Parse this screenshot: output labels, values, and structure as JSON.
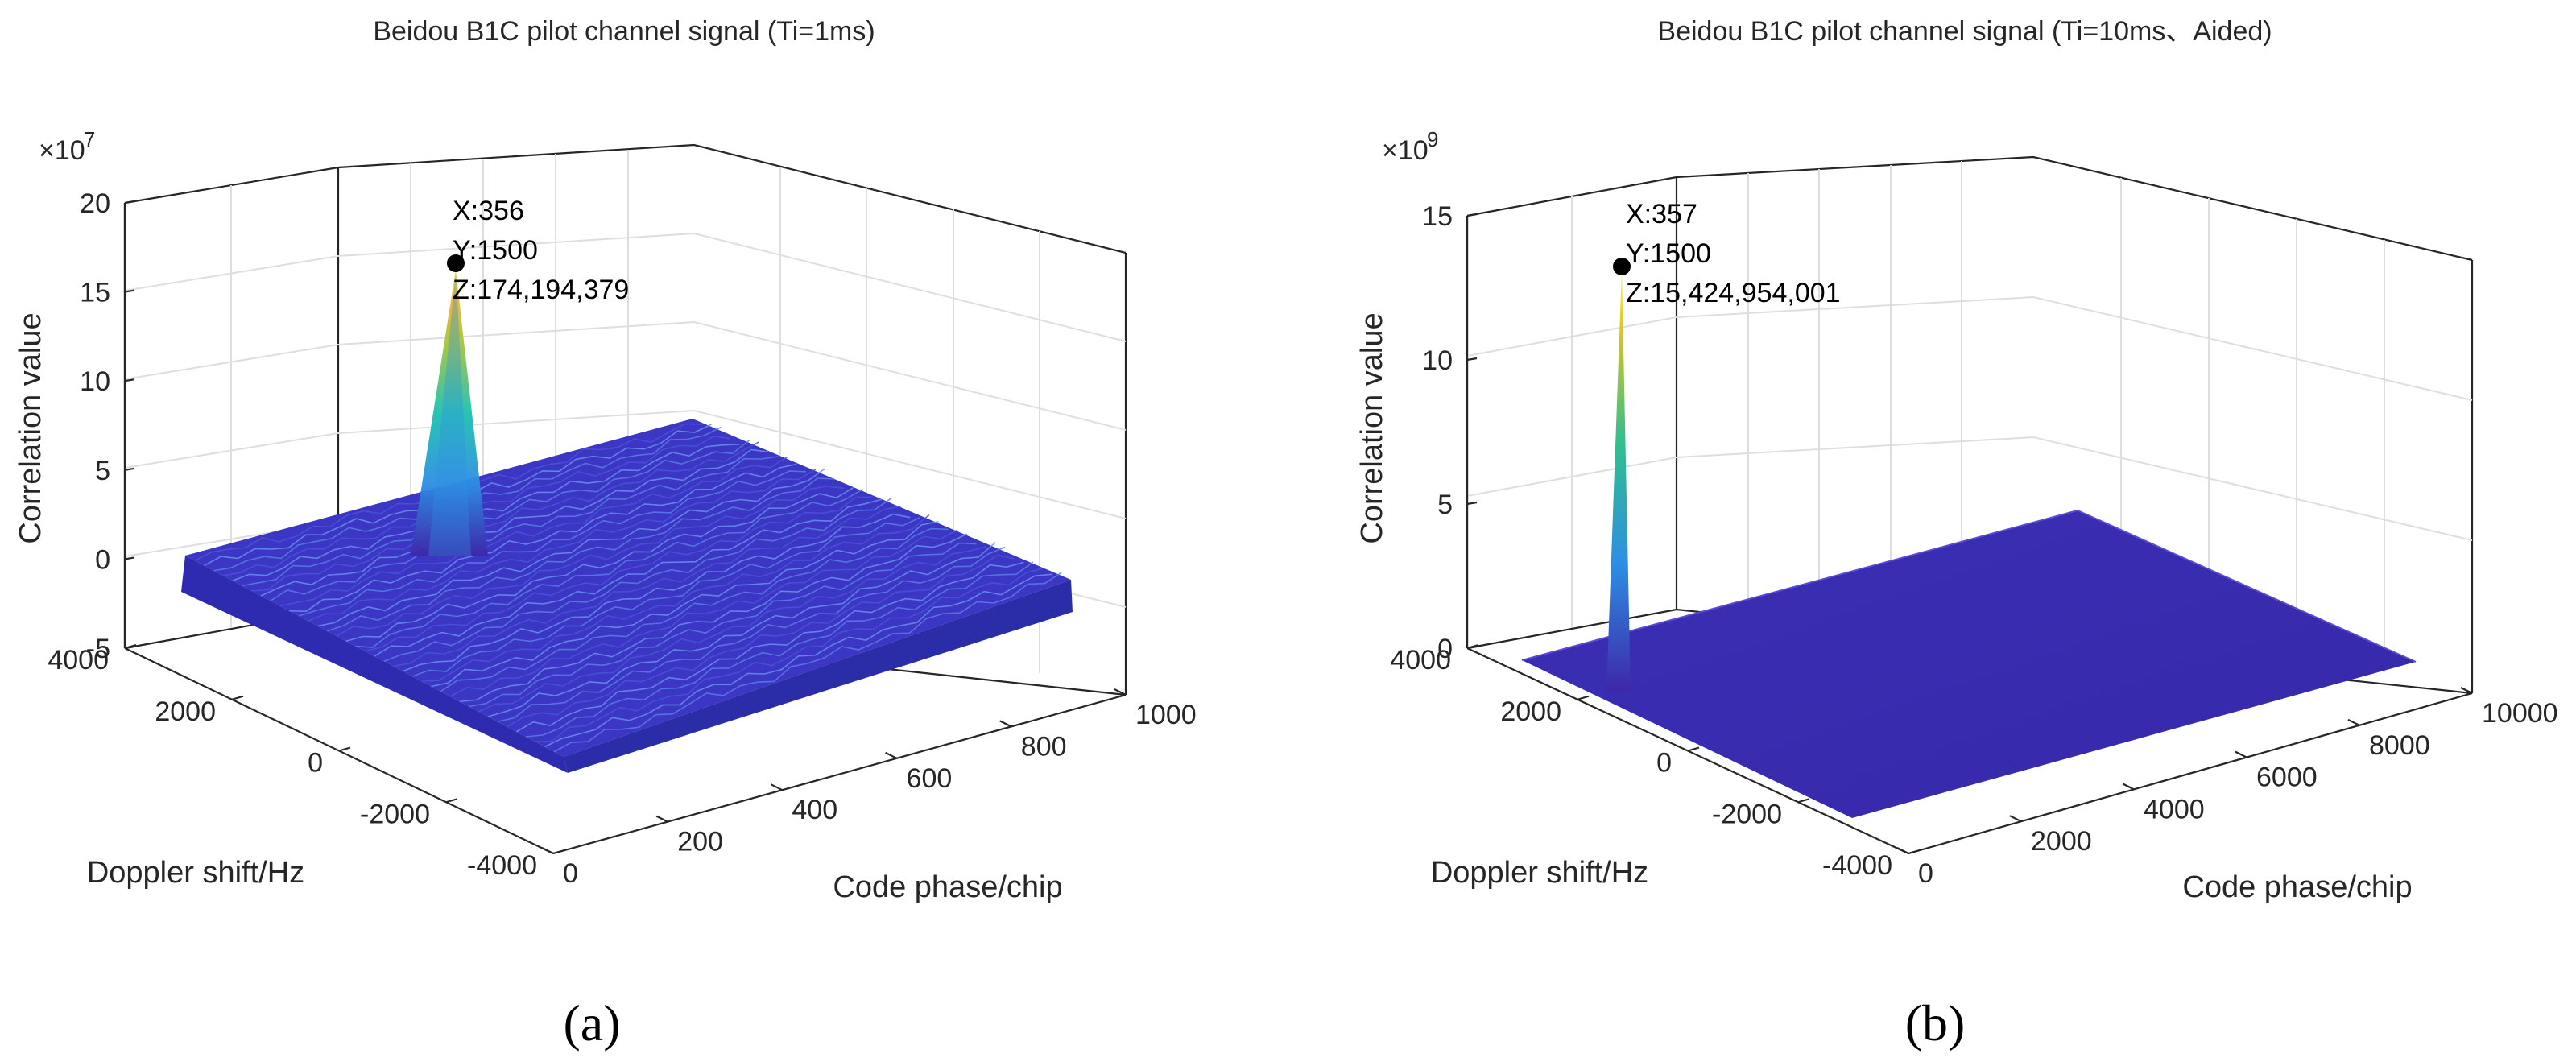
{
  "chart_data": [
    {
      "type": "surface3d",
      "panel_label": "(a)",
      "title": "Beidou B1C pilot channel signal (Ti=1ms)",
      "xlabel": "Code phase/chip",
      "ylabel": "Doppler shift/Hz",
      "zlabel": "Correlation value",
      "exponent_label": "×10",
      "exponent_power": "7",
      "xlim": [
        0,
        1000
      ],
      "ylim": [
        -4000,
        4000
      ],
      "zlim": [
        -5,
        20
      ],
      "xticks": [
        "0",
        "200",
        "400",
        "600",
        "800",
        "1000"
      ],
      "yticks": [
        "4000",
        "2000",
        "0",
        "-2000",
        "-4000"
      ],
      "zticks": [
        "-5",
        "0",
        "5",
        "10",
        "15",
        "20"
      ],
      "colormap": "parula",
      "peak": {
        "x": 356,
        "y": 1500,
        "z": 174194379,
        "z_scaled": 17.42
      },
      "noise_floor_scaled": [
        -2,
        1
      ],
      "datatip": [
        "X:356",
        "Y:1500",
        "Z:174,194,379"
      ]
    },
    {
      "type": "surface3d",
      "panel_label": "(b)",
      "title": "Beidou B1C pilot channel signal (Ti=10ms、Aided)",
      "xlabel": "Code phase/chip",
      "ylabel": "Doppler shift/Hz",
      "zlabel": "Correlation value",
      "exponent_label": "×10",
      "exponent_power": "9",
      "xlim": [
        0,
        10000
      ],
      "ylim": [
        -4000,
        4000
      ],
      "zlim": [
        0,
        15
      ],
      "xticks": [
        "0",
        "2000",
        "4000",
        "6000",
        "8000",
        "10000"
      ],
      "yticks": [
        "4000",
        "2000",
        "0",
        "-2000",
        "-4000"
      ],
      "zticks": [
        "0",
        "5",
        "10",
        "15"
      ],
      "colormap": "parula",
      "peak": {
        "x": 357,
        "y": 1500,
        "z": 15424954001,
        "z_scaled": 15.42
      },
      "noise_floor_scaled": [
        0,
        0.1
      ],
      "datatip": [
        "X:357",
        "Y:1500",
        "Z:15,424,954,001"
      ]
    }
  ]
}
